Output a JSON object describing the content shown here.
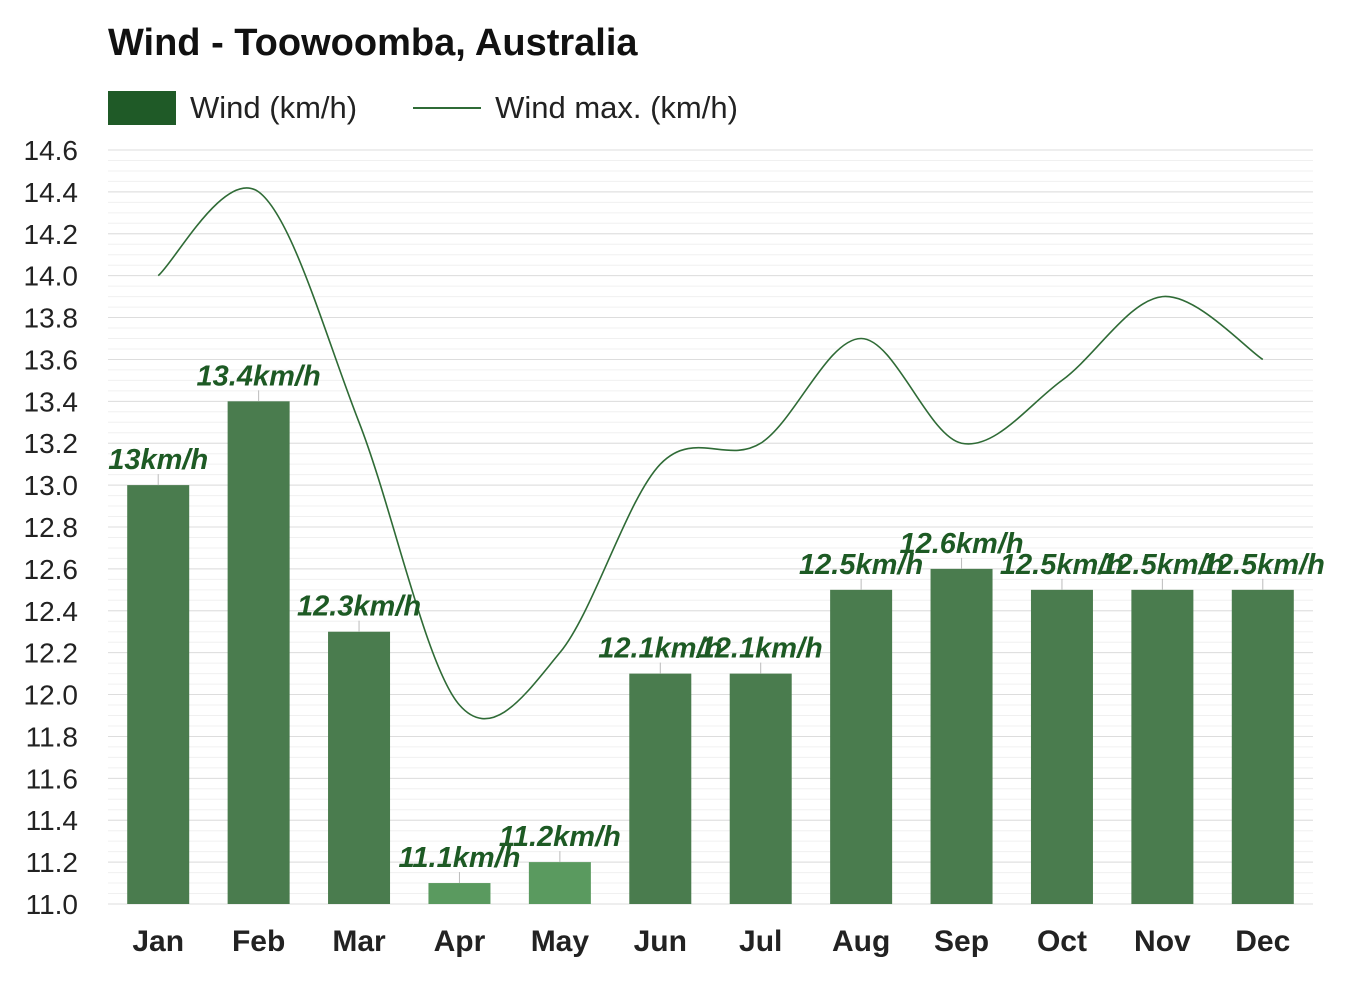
{
  "chart_data": {
    "type": "bar",
    "title": "Wind - Toowoomba, Australia",
    "categories": [
      "Jan",
      "Feb",
      "Mar",
      "Apr",
      "May",
      "Jun",
      "Jul",
      "Aug",
      "Sep",
      "Oct",
      "Nov",
      "Dec"
    ],
    "series": [
      {
        "name": "Wind (km/h)",
        "type": "bar",
        "color": "#4a7c4e",
        "values": [
          13.0,
          13.4,
          12.3,
          11.1,
          11.2,
          12.1,
          12.1,
          12.5,
          12.6,
          12.5,
          12.5,
          12.5
        ],
        "labels": [
          "13km/h",
          "13.4km/h",
          "12.3km/h",
          "11.1km/h",
          "11.2km/h",
          "12.1km/h",
          "12.1km/h",
          "12.5km/h",
          "12.6km/h",
          "12.5km/h",
          "12.5km/h",
          "12.5km/h"
        ]
      },
      {
        "name": "Wind max. (km/h)",
        "type": "line",
        "color": "#2f6b36",
        "values": [
          14.0,
          14.4,
          13.3,
          11.95,
          12.2,
          13.1,
          13.2,
          13.7,
          13.2,
          13.5,
          13.9,
          13.6
        ]
      }
    ],
    "light_bar_color": "#5a9a5f",
    "ylim": [
      11.0,
      14.6
    ],
    "yticks": [
      "11.0",
      "11.2",
      "11.4",
      "11.6",
      "11.8",
      "12.0",
      "12.2",
      "12.4",
      "12.6",
      "12.8",
      "13.0",
      "13.2",
      "13.4",
      "13.6",
      "13.8",
      "14.0",
      "14.2",
      "14.4",
      "14.6"
    ],
    "xlabel": "",
    "ylabel": "",
    "grid": true,
    "legend": "top-left"
  }
}
